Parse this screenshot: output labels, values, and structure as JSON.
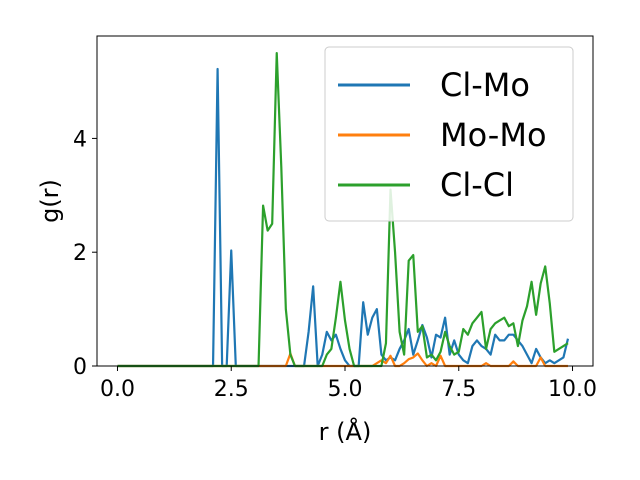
{
  "chart_data": {
    "type": "line",
    "xlabel": "r (Å)",
    "ylabel": "g(r)",
    "xlim": [
      -0.45,
      10.45
    ],
    "ylim": [
      0,
      5.8
    ],
    "xticks": [
      0.0,
      2.5,
      5.0,
      7.5,
      10.0
    ],
    "xtick_labels": [
      "0.0",
      "2.5",
      "5.0",
      "7.5",
      "10.0"
    ],
    "yticks": [
      0,
      2,
      4
    ],
    "ytick_labels": [
      "0",
      "2",
      "4"
    ],
    "grid": false,
    "legend_position": "top-right",
    "series": [
      {
        "name": "Cl-Mo",
        "color": "#1f77b4",
        "points": [
          [
            0.0,
            0
          ],
          [
            2.1,
            0
          ],
          [
            2.2,
            5.22
          ],
          [
            2.3,
            0
          ],
          [
            2.4,
            0
          ],
          [
            2.5,
            2.03
          ],
          [
            2.6,
            0
          ],
          [
            4.1,
            0
          ],
          [
            4.2,
            0.6
          ],
          [
            4.3,
            1.4
          ],
          [
            4.4,
            0
          ],
          [
            4.5,
            0.2
          ],
          [
            4.6,
            0.6
          ],
          [
            4.7,
            0.45
          ],
          [
            4.8,
            0.55
          ],
          [
            4.9,
            0.3
          ],
          [
            5.0,
            0.1
          ],
          [
            5.1,
            0
          ],
          [
            5.3,
            0
          ],
          [
            5.4,
            1.12
          ],
          [
            5.5,
            0.55
          ],
          [
            5.6,
            0.85
          ],
          [
            5.7,
            1.0
          ],
          [
            5.8,
            0.2
          ],
          [
            5.9,
            0.1
          ],
          [
            6.0,
            0.15
          ],
          [
            6.1,
            0.1
          ],
          [
            6.2,
            0.3
          ],
          [
            6.3,
            0.45
          ],
          [
            6.4,
            0.65
          ],
          [
            6.5,
            0.2
          ],
          [
            6.6,
            0.45
          ],
          [
            6.7,
            0.72
          ],
          [
            6.8,
            0.5
          ],
          [
            6.9,
            0.15
          ],
          [
            7.0,
            0.55
          ],
          [
            7.1,
            0.5
          ],
          [
            7.2,
            0.85
          ],
          [
            7.3,
            0.2
          ],
          [
            7.4,
            0.45
          ],
          [
            7.5,
            0.2
          ],
          [
            7.6,
            0.1
          ],
          [
            7.7,
            0.05
          ],
          [
            7.8,
            0.35
          ],
          [
            7.9,
            0.45
          ],
          [
            8.0,
            0.35
          ],
          [
            8.1,
            0.3
          ],
          [
            8.2,
            0.2
          ],
          [
            8.3,
            0.55
          ],
          [
            8.4,
            0.45
          ],
          [
            8.5,
            0.45
          ],
          [
            8.6,
            0.55
          ],
          [
            8.7,
            0.55
          ],
          [
            8.8,
            0.45
          ],
          [
            8.9,
            0.35
          ],
          [
            9.0,
            0.2
          ],
          [
            9.1,
            0.05
          ],
          [
            9.2,
            0.3
          ],
          [
            9.3,
            0.15
          ],
          [
            9.4,
            0.05
          ],
          [
            9.5,
            0.1
          ],
          [
            9.6,
            0.05
          ],
          [
            9.7,
            0.1
          ],
          [
            9.8,
            0.15
          ],
          [
            9.9,
            0.48
          ]
        ]
      },
      {
        "name": "Mo-Mo",
        "color": "#ff7f0e",
        "points": [
          [
            0.0,
            0
          ],
          [
            3.7,
            0
          ],
          [
            3.8,
            0.22
          ],
          [
            3.9,
            0
          ],
          [
            5.6,
            0
          ],
          [
            5.7,
            0.05
          ],
          [
            5.8,
            0.1
          ],
          [
            5.9,
            0.05
          ],
          [
            6.0,
            0.18
          ],
          [
            6.1,
            0
          ],
          [
            6.2,
            0
          ],
          [
            6.3,
            0.05
          ],
          [
            6.4,
            0.12
          ],
          [
            6.5,
            0.15
          ],
          [
            6.6,
            0.22
          ],
          [
            6.7,
            0.1
          ],
          [
            6.8,
            0
          ],
          [
            6.9,
            0.05
          ],
          [
            7.0,
            0
          ],
          [
            7.1,
            0.18
          ],
          [
            7.2,
            0
          ],
          [
            8.0,
            0
          ],
          [
            8.1,
            0.05
          ],
          [
            8.2,
            0
          ],
          [
            8.6,
            0
          ],
          [
            8.7,
            0.08
          ],
          [
            8.8,
            0
          ],
          [
            9.2,
            0
          ],
          [
            9.3,
            0.15
          ],
          [
            9.4,
            0
          ],
          [
            9.9,
            0
          ]
        ]
      },
      {
        "name": "Cl-Cl",
        "color": "#2ca02c",
        "points": [
          [
            0.0,
            0
          ],
          [
            3.1,
            0
          ],
          [
            3.2,
            2.82
          ],
          [
            3.3,
            2.38
          ],
          [
            3.4,
            2.5
          ],
          [
            3.5,
            5.5
          ],
          [
            3.6,
            3.5
          ],
          [
            3.7,
            1.0
          ],
          [
            3.8,
            0.2
          ],
          [
            3.9,
            0
          ],
          [
            4.5,
            0
          ],
          [
            4.6,
            0.2
          ],
          [
            4.7,
            0.3
          ],
          [
            4.8,
            0.85
          ],
          [
            4.9,
            1.48
          ],
          [
            5.0,
            0.8
          ],
          [
            5.1,
            0.3
          ],
          [
            5.2,
            0
          ],
          [
            5.8,
            0
          ],
          [
            5.9,
            0.4
          ],
          [
            6.0,
            3.1
          ],
          [
            6.1,
            2.0
          ],
          [
            6.2,
            0.6
          ],
          [
            6.3,
            0.2
          ],
          [
            6.4,
            1.85
          ],
          [
            6.5,
            1.95
          ],
          [
            6.6,
            0.6
          ],
          [
            6.7,
            0.7
          ],
          [
            6.8,
            0.15
          ],
          [
            6.9,
            0.2
          ],
          [
            7.0,
            0.1
          ],
          [
            7.1,
            0.25
          ],
          [
            7.2,
            0.6
          ],
          [
            7.3,
            0.35
          ],
          [
            7.4,
            0.2
          ],
          [
            7.5,
            0.25
          ],
          [
            7.6,
            0.65
          ],
          [
            7.7,
            0.55
          ],
          [
            7.8,
            0.75
          ],
          [
            7.9,
            0.85
          ],
          [
            8.0,
            0.95
          ],
          [
            8.1,
            0.3
          ],
          [
            8.2,
            0.65
          ],
          [
            8.3,
            0.75
          ],
          [
            8.4,
            0.8
          ],
          [
            8.5,
            0.85
          ],
          [
            8.6,
            0.7
          ],
          [
            8.7,
            0.75
          ],
          [
            8.8,
            0.35
          ],
          [
            8.9,
            0.8
          ],
          [
            9.0,
            1.05
          ],
          [
            9.1,
            1.48
          ],
          [
            9.2,
            0.9
          ],
          [
            9.3,
            1.45
          ],
          [
            9.4,
            1.75
          ],
          [
            9.5,
            1.1
          ],
          [
            9.6,
            0.25
          ],
          [
            9.7,
            0.3
          ],
          [
            9.8,
            0.35
          ],
          [
            9.9,
            0.4
          ]
        ]
      }
    ]
  }
}
